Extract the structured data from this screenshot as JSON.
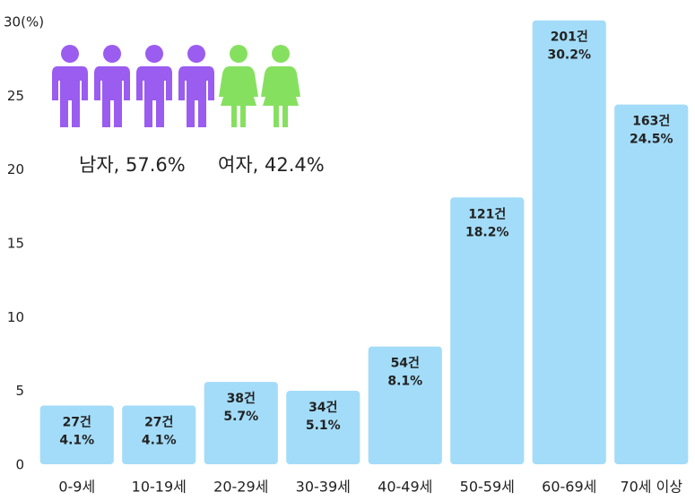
{
  "chart_data": {
    "type": "bar",
    "categories": [
      "0-9세",
      "10-19세",
      "20-29세",
      "30-39세",
      "40-49세",
      "50-59세",
      "60-69세",
      "70세 이상"
    ],
    "values": [
      4.1,
      4.1,
      5.7,
      5.1,
      8.1,
      18.2,
      30.2,
      24.5
    ],
    "value_labels": [
      "4.1%",
      "4.1%",
      "5.7%",
      "5.1%",
      "8.1%",
      "18.2%",
      "30.2%",
      "24.5%"
    ],
    "count_labels": [
      "27건",
      "27건",
      "38건",
      "34건",
      "54건",
      "121건",
      "201건",
      "163건"
    ],
    "color": "#a3dcf8",
    "ylim": [
      0,
      30
    ],
    "yticks": [
      0,
      5,
      10,
      15,
      20,
      25,
      {
        "value": 30,
        "label": "30(%)"
      }
    ],
    "annotations": [
      {
        "text": "남자, 57.6%",
        "color": "#9b5cf0"
      },
      {
        "text": "여자, 42.4%",
        "color": "#86e060"
      }
    ]
  }
}
